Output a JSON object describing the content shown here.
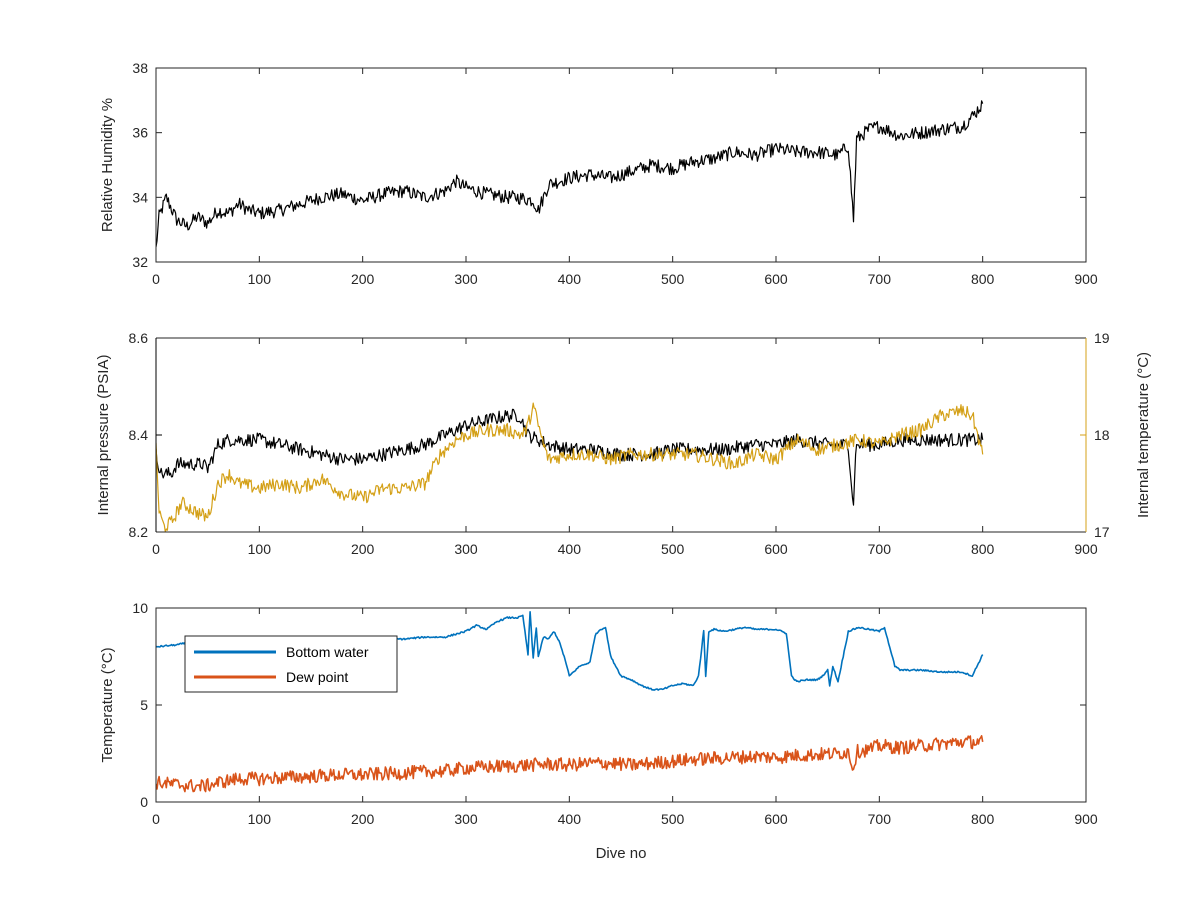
{
  "colors": {
    "black": "#000000",
    "axis": "#262626",
    "temperature_axis": "#D4A017",
    "bottom_water": "#0072BD",
    "dew_point": "#D95319"
  },
  "chart_data": [
    {
      "type": "line",
      "xlim": [
        0,
        900
      ],
      "ylim": [
        32,
        38
      ],
      "xticks": [
        "0",
        "100",
        "200",
        "300",
        "400",
        "500",
        "600",
        "700",
        "800",
        "900"
      ],
      "yticks": [
        "32",
        "34",
        "36",
        "38"
      ],
      "ylabel": "Relative Humidity %",
      "xlabel": "",
      "grid": false,
      "series": [
        {
          "color": "#000000",
          "x": [
            0,
            3,
            10,
            20,
            30,
            40,
            50,
            60,
            70,
            80,
            90,
            100,
            120,
            140,
            160,
            180,
            200,
            220,
            240,
            260,
            280,
            290,
            300,
            320,
            340,
            350,
            365,
            370,
            380,
            400,
            420,
            440,
            460,
            480,
            500,
            520,
            540,
            560,
            580,
            600,
            620,
            640,
            660,
            670,
            675,
            678,
            690,
            700,
            720,
            740,
            760,
            780,
            790,
            800
          ],
          "y": [
            32.4,
            33.4,
            34.0,
            33.3,
            33.1,
            33.4,
            33.2,
            33.6,
            33.5,
            33.8,
            33.6,
            33.5,
            33.6,
            33.8,
            34.0,
            34.1,
            33.9,
            34.1,
            34.2,
            34.0,
            34.2,
            34.5,
            34.3,
            34.1,
            34.0,
            34.0,
            33.9,
            33.6,
            34.4,
            34.6,
            34.7,
            34.6,
            34.8,
            35.0,
            34.9,
            35.1,
            35.2,
            35.4,
            35.3,
            35.5,
            35.4,
            35.4,
            35.3,
            35.6,
            33.3,
            35.8,
            36.1,
            36.2,
            35.9,
            36.0,
            36.1,
            36.2,
            36.5,
            36.9
          ]
        }
      ]
    },
    {
      "type": "line",
      "xlim": [
        0,
        900
      ],
      "ylim": [
        8.2,
        8.6
      ],
      "y2lim": [
        17,
        19
      ],
      "xticks": [
        "0",
        "100",
        "200",
        "300",
        "400",
        "500",
        "600",
        "700",
        "800",
        "900"
      ],
      "yticks": [
        "8.2",
        "8.4",
        "8.6"
      ],
      "y2ticks": [
        "17",
        "18",
        "19"
      ],
      "ylabel": "Internal pressure (PSIA)",
      "y2label": "Internal temperature (°C)",
      "xlabel": "",
      "grid": false,
      "series": [
        {
          "axis": "left",
          "color": "#000000",
          "x": [
            0,
            5,
            15,
            20,
            30,
            45,
            50,
            60,
            70,
            80,
            100,
            120,
            140,
            160,
            180,
            200,
            220,
            240,
            260,
            280,
            300,
            320,
            340,
            352,
            360,
            370,
            380,
            400,
            420,
            450,
            480,
            500,
            520,
            550,
            580,
            600,
            620,
            650,
            670,
            675,
            677,
            680,
            700,
            720,
            740,
            760,
            780,
            800
          ],
          "y": [
            8.36,
            8.32,
            8.32,
            8.34,
            8.34,
            8.34,
            8.33,
            8.38,
            8.39,
            8.39,
            8.39,
            8.38,
            8.37,
            8.36,
            8.35,
            8.35,
            8.36,
            8.37,
            8.38,
            8.4,
            8.42,
            8.43,
            8.44,
            8.44,
            8.4,
            8.39,
            8.38,
            8.37,
            8.37,
            8.36,
            8.36,
            8.37,
            8.37,
            8.37,
            8.38,
            8.38,
            8.39,
            8.38,
            8.38,
            8.25,
            8.37,
            8.38,
            8.38,
            8.39,
            8.39,
            8.39,
            8.39,
            8.39
          ]
        },
        {
          "axis": "right",
          "color": "#D4A017",
          "x": [
            0,
            3,
            8,
            15,
            25,
            40,
            50,
            60,
            70,
            80,
            100,
            120,
            140,
            160,
            180,
            200,
            220,
            240,
            260,
            275,
            290,
            300,
            320,
            340,
            355,
            360,
            365,
            370,
            375,
            380,
            400,
            420,
            440,
            460,
            480,
            500,
            520,
            540,
            560,
            580,
            600,
            620,
            640,
            660,
            680,
            700,
            720,
            740,
            760,
            780,
            790,
            800
          ],
          "y": [
            17.9,
            17.2,
            17.05,
            17.1,
            17.3,
            17.2,
            17.15,
            17.5,
            17.6,
            17.5,
            17.45,
            17.5,
            17.45,
            17.55,
            17.4,
            17.35,
            17.45,
            17.45,
            17.5,
            17.8,
            17.95,
            18.0,
            18.05,
            18.05,
            18.0,
            18.1,
            18.3,
            18.1,
            17.9,
            17.75,
            17.8,
            17.8,
            17.75,
            17.8,
            17.8,
            17.8,
            17.8,
            17.75,
            17.7,
            17.8,
            17.75,
            17.95,
            17.85,
            17.9,
            17.95,
            17.9,
            18.0,
            18.05,
            18.2,
            18.25,
            18.2,
            17.8
          ]
        }
      ]
    },
    {
      "type": "line",
      "xlim": [
        0,
        900
      ],
      "ylim": [
        0,
        10
      ],
      "xticks": [
        "0",
        "100",
        "200",
        "300",
        "400",
        "500",
        "600",
        "700",
        "800",
        "900"
      ],
      "yticks": [
        "0",
        "5",
        "10"
      ],
      "ylabel": "Temperature (°C)",
      "xlabel": "Dive no",
      "grid": false,
      "legend": {
        "placement": "top-left",
        "entries": [
          "Bottom water",
          "Dew point"
        ]
      },
      "series": [
        {
          "name": "Bottom water",
          "color": "#0072BD",
          "x": [
            0,
            20,
            40,
            60,
            80,
            100,
            120,
            140,
            160,
            180,
            200,
            220,
            240,
            260,
            280,
            300,
            310,
            320,
            330,
            340,
            350,
            355,
            360,
            362,
            365,
            368,
            370,
            375,
            380,
            385,
            390,
            395,
            400,
            410,
            420,
            425,
            430,
            435,
            440,
            450,
            460,
            470,
            480,
            490,
            500,
            510,
            520,
            525,
            530,
            532,
            535,
            540,
            550,
            560,
            570,
            580,
            590,
            600,
            610,
            615,
            620,
            630,
            640,
            645,
            650,
            652,
            655,
            660,
            670,
            680,
            690,
            700,
            705,
            710,
            715,
            720,
            740,
            760,
            780,
            790,
            800
          ],
          "y": [
            8.0,
            8.1,
            8.3,
            8.4,
            8.5,
            8.4,
            8.4,
            8.4,
            8.4,
            8.4,
            8.4,
            8.4,
            8.4,
            8.5,
            8.5,
            8.8,
            9.1,
            8.9,
            9.3,
            9.5,
            9.5,
            9.6,
            7.6,
            9.8,
            7.4,
            9.0,
            7.5,
            8.5,
            8.4,
            8.8,
            8.3,
            7.5,
            6.5,
            7.0,
            7.2,
            8.6,
            8.9,
            9.0,
            7.5,
            6.5,
            6.3,
            6.0,
            5.8,
            5.8,
            6.0,
            6.1,
            6.0,
            6.5,
            8.8,
            6.5,
            8.8,
            8.9,
            8.8,
            8.9,
            9.0,
            8.9,
            8.9,
            8.9,
            8.7,
            6.5,
            6.2,
            6.3,
            6.3,
            6.5,
            6.8,
            6.0,
            7.0,
            6.2,
            8.8,
            9.0,
            8.9,
            8.8,
            9.0,
            8.0,
            7.0,
            6.8,
            6.8,
            6.7,
            6.7,
            6.5,
            7.6
          ]
        },
        {
          "name": "Dew point",
          "color": "#D95319",
          "x": [
            0,
            20,
            40,
            50,
            60,
            80,
            100,
            120,
            140,
            160,
            180,
            200,
            220,
            240,
            260,
            280,
            300,
            320,
            340,
            360,
            380,
            400,
            420,
            440,
            460,
            480,
            500,
            520,
            540,
            560,
            580,
            600,
            620,
            640,
            660,
            670,
            675,
            678,
            690,
            700,
            720,
            740,
            760,
            780,
            800
          ],
          "y": [
            1.0,
            0.9,
            0.8,
            0.85,
            1.0,
            1.2,
            1.2,
            1.25,
            1.3,
            1.35,
            1.4,
            1.4,
            1.45,
            1.5,
            1.55,
            1.6,
            1.75,
            1.8,
            1.85,
            1.9,
            1.95,
            1.9,
            2.0,
            2.0,
            1.9,
            2.0,
            2.1,
            2.2,
            2.25,
            2.3,
            2.35,
            2.3,
            2.4,
            2.45,
            2.5,
            2.6,
            1.7,
            2.6,
            2.7,
            2.9,
            2.8,
            2.9,
            3.0,
            3.1,
            3.1
          ]
        }
      ]
    }
  ]
}
